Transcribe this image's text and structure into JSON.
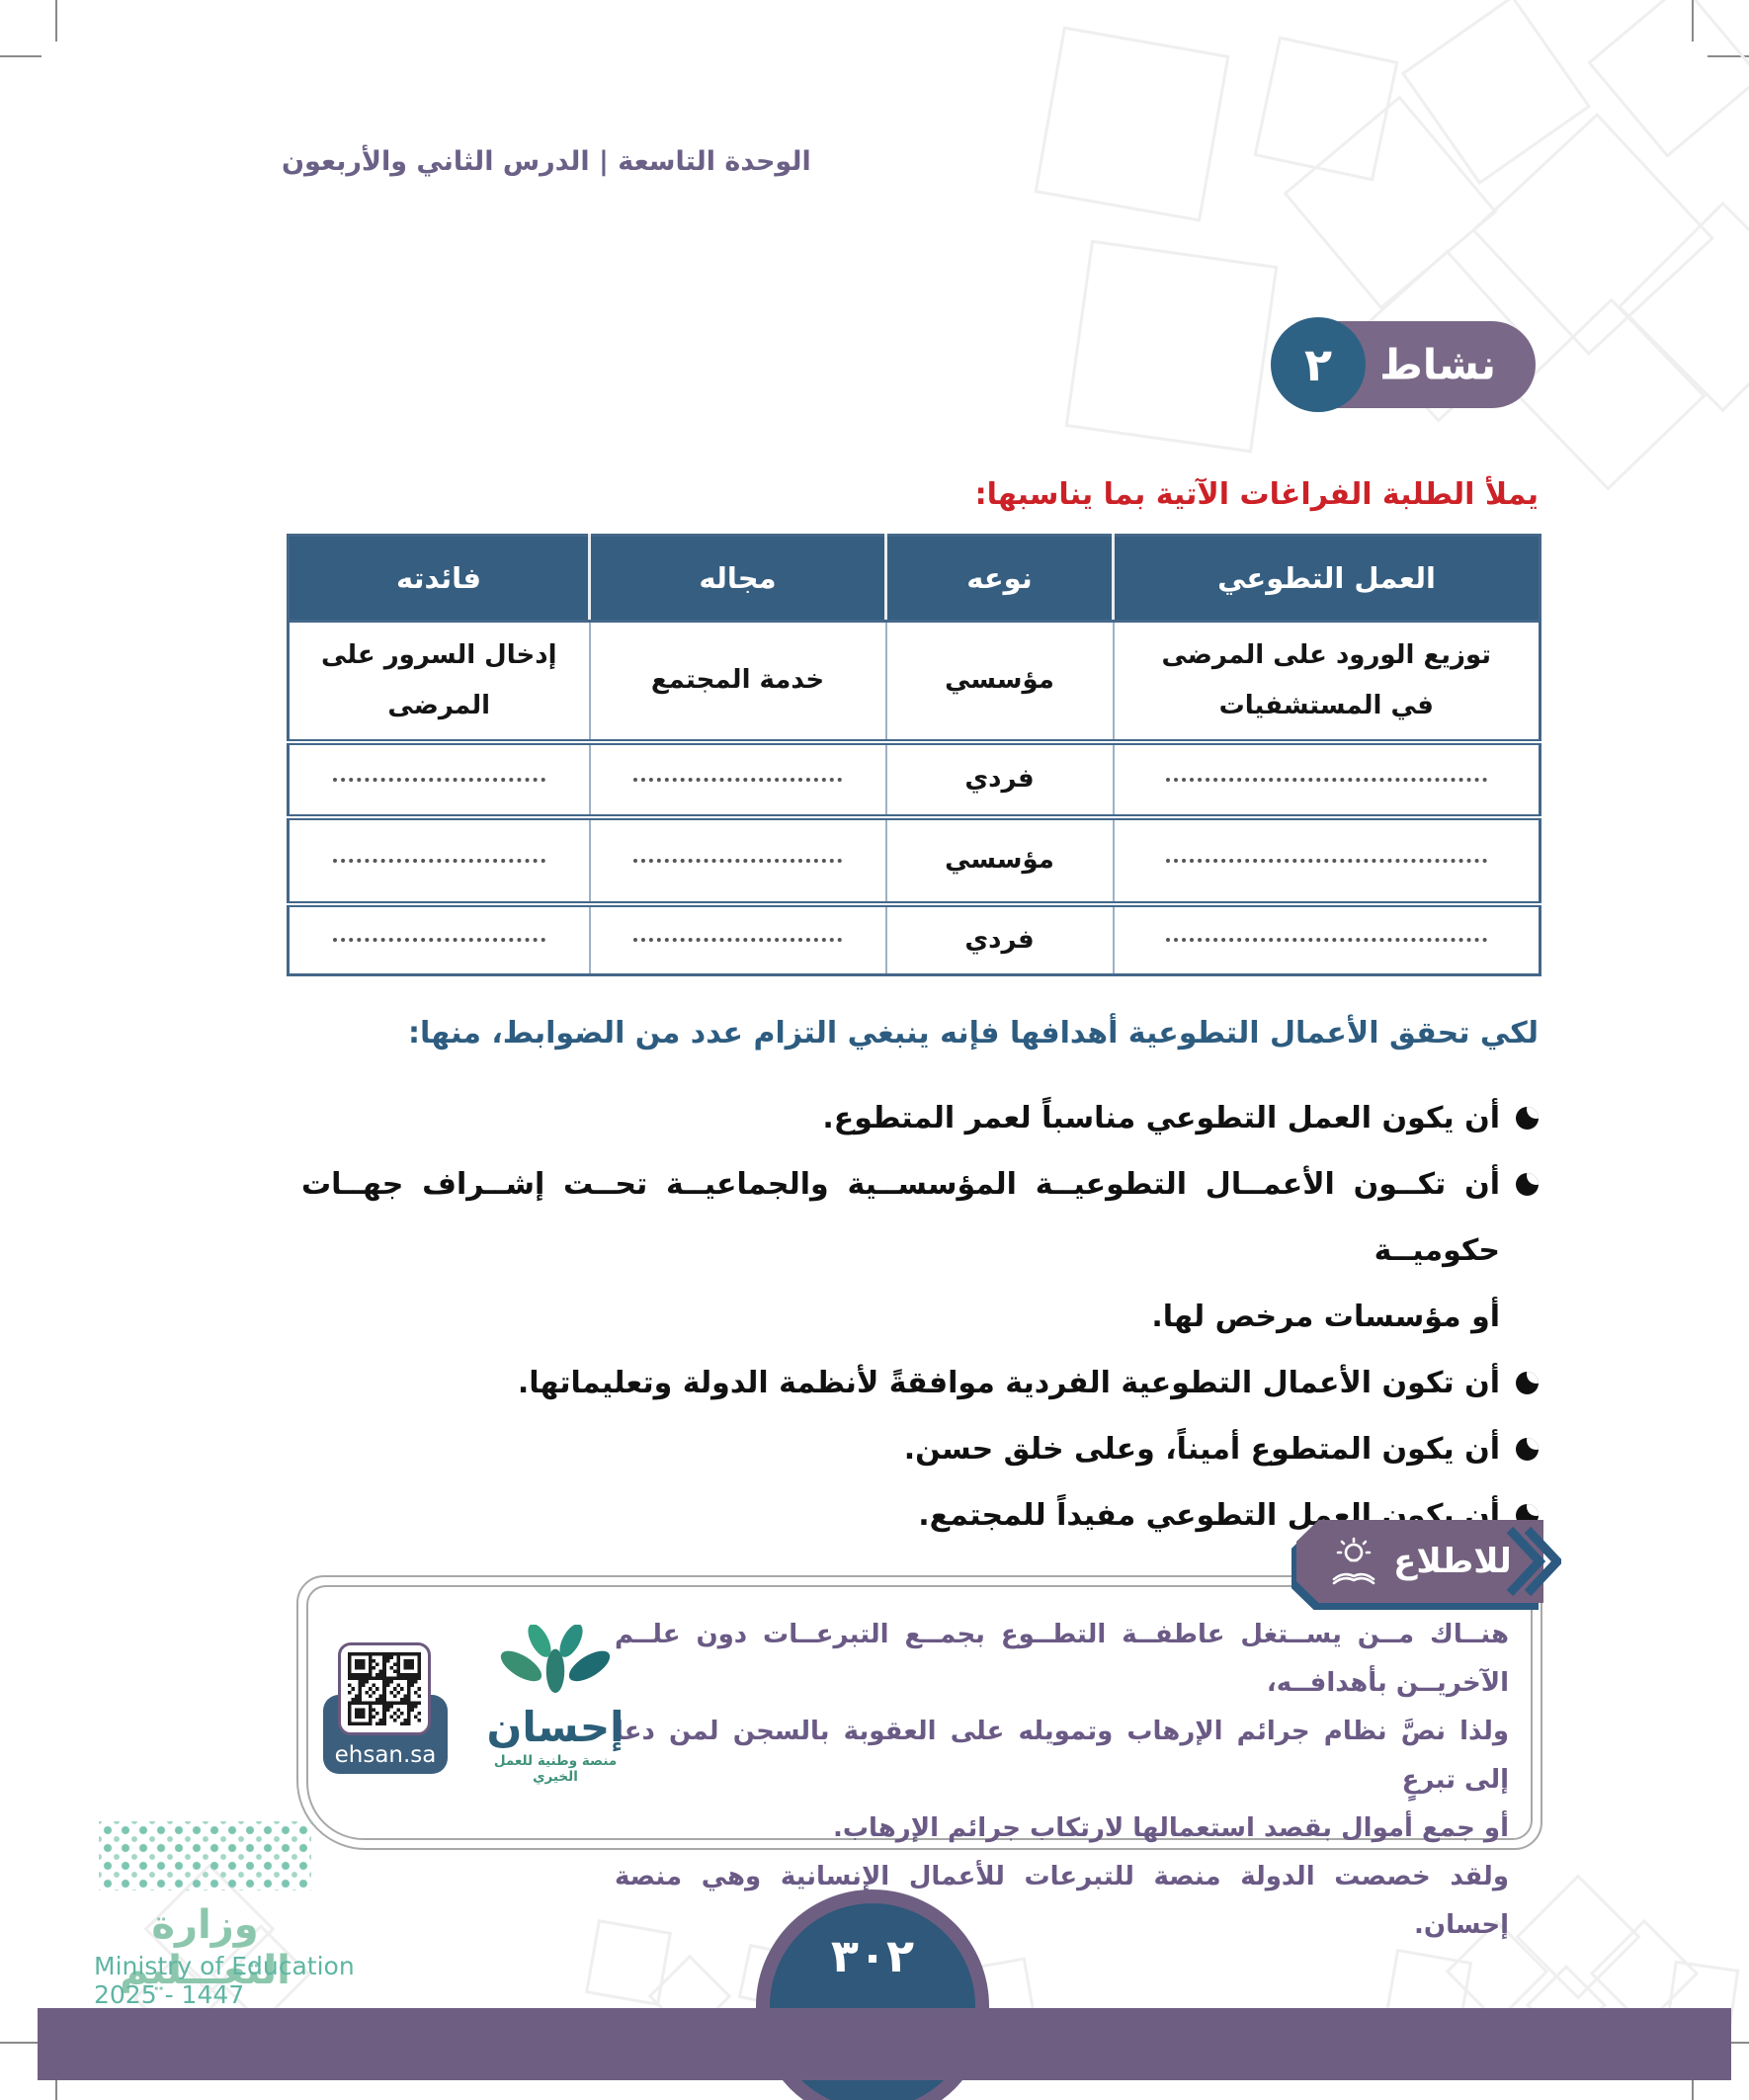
{
  "page_header": "الوحدة التاسعة  |  الدرس الثاني والأربعون",
  "activity": {
    "label": "نشاط",
    "number": "٢"
  },
  "instruction": "يملأ الطلبة الفراغات الآتية بما يناسبها:",
  "table": {
    "headers": {
      "work": "العمل التطوعي",
      "type": "نوعه",
      "field": "مجاله",
      "benefit": "فائدته"
    },
    "rows": [
      {
        "work": "توزيع الورود على المرضى في المستشفيات",
        "type": "مؤسسي",
        "field": "خدمة المجتمع",
        "benefit": "إدخال السرور على المرضى"
      },
      {
        "type": "فردي"
      },
      {
        "type": "مؤسسي"
      },
      {
        "type": "فردي"
      }
    ]
  },
  "controls_heading": "لكي تحقق الأعمال التطوعية أهدافها فإنه ينبغي التزام عدد من الضوابط، منها:",
  "bullets": [
    "أن يكون العمل التطوعي مناسباً لعمر المتطوع.",
    "أن تكــون الأعمــال التطوعيــة المؤسســية والجماعيــة تحــت إشــراف جهــات حكوميــة\nأو مؤسسات مرخص لها.",
    "أن تكون الأعمال التطوعية الفردية موافقةً لأنظمة الدولة وتعليماتها.",
    "أن يكون المتطوع أميناً، وعلى خلق حسن.",
    "أن يكون العمل التطوعي مفيداً للمجتمع."
  ],
  "info_box": {
    "tab_label": "للاطلاع",
    "paragraph1": "هنــاك مــن يســتغل عاطفــة التطــوع بجمــع التبرعــات دون علــم الآخريــن بأهدافــه،\nولذا نصَّ نظام جرائم الإرهاب وتمويله على العقوبة بالسجن لمن دعا إلى تبرعٍ\nأو جمع أموال بقصد استعمالها لارتكاب جرائم الإرهاب.",
    "paragraph2": "ولقد خصصت الدولة منصة للتبرعات للأعمال الإنسانية وهي منصة إحسان.",
    "qr_label": "ehsan.sa",
    "ehsan_name": "إحسان",
    "ehsan_tagline": "منصة وطنية للعمل الخيري"
  },
  "footer": {
    "ministry_ar": "وزارة التعـــليم",
    "ministry_en": "Ministry of Education",
    "years": "2025 - 1447",
    "page_number": "٣٠٢"
  },
  "colors": {
    "table_header_blue": "#365e80",
    "badge_purple": "#796887",
    "badge_circle_blue": "#2e6284",
    "red": "#cc2127",
    "heading_blue": "#2d5c80",
    "info_purple": "#6a5a85",
    "footer_purple": "#6e5f82",
    "ehsan_green": "#3f9179",
    "ministry_teal": "#5fb5a3"
  }
}
